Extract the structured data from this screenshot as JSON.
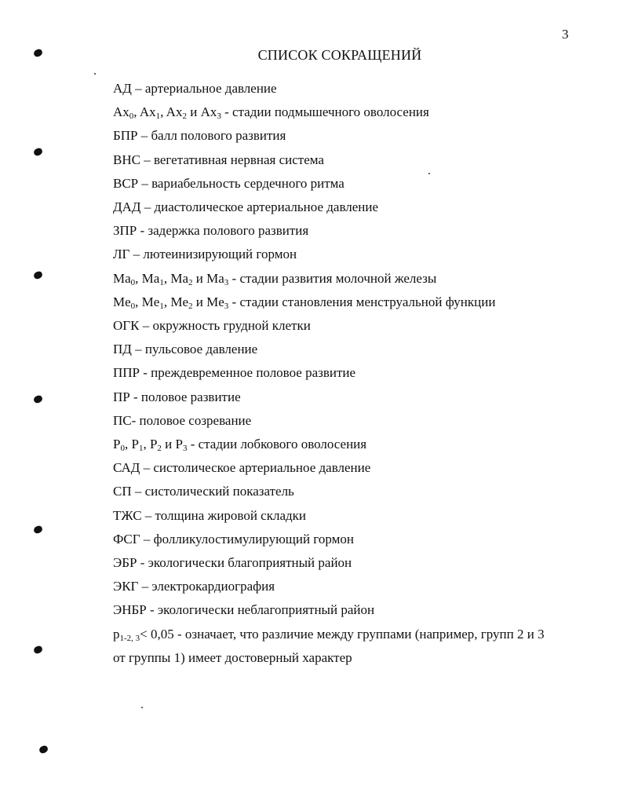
{
  "page_number": "3",
  "title": "СПИСОК СОКРАЩЕНИЙ",
  "lines": [
    [
      {
        "t": "АД – артериальное давление"
      }
    ],
    [
      {
        "t": "Ax"
      },
      {
        "t": "0",
        "sub": true
      },
      {
        "t": ", Ax"
      },
      {
        "t": "1",
        "sub": true
      },
      {
        "t": ", Ax"
      },
      {
        "t": "2",
        "sub": true
      },
      {
        "t": " и Ax"
      },
      {
        "t": "3",
        "sub": true
      },
      {
        "t": " - стадии подмышечного оволосения"
      }
    ],
    [
      {
        "t": "БПР – балл полового развития"
      }
    ],
    [
      {
        "t": "ВНС – вегетативная нервная система"
      }
    ],
    [
      {
        "t": "ВСР – вариабельность сердечного ритма"
      }
    ],
    [
      {
        "t": "ДАД – диастолическое артериальное давление"
      }
    ],
    [
      {
        "t": "ЗПР - задержка полового развития"
      }
    ],
    [
      {
        "t": "ЛГ – лютеинизирующий гормон"
      }
    ],
    [
      {
        "t": "Ma"
      },
      {
        "t": "0",
        "sub": true
      },
      {
        "t": ", Ma"
      },
      {
        "t": "1",
        "sub": true
      },
      {
        "t": ", Ma"
      },
      {
        "t": "2",
        "sub": true
      },
      {
        "t": " и Ma"
      },
      {
        "t": "3",
        "sub": true
      },
      {
        "t": " - стадии развития молочной железы"
      }
    ],
    [
      {
        "t": "Me"
      },
      {
        "t": "0",
        "sub": true
      },
      {
        "t": ", Me"
      },
      {
        "t": "1",
        "sub": true
      },
      {
        "t": ", Me"
      },
      {
        "t": "2",
        "sub": true
      },
      {
        "t": " и Me"
      },
      {
        "t": "3",
        "sub": true
      },
      {
        "t": " - стадии становления менструальной функции"
      }
    ],
    [
      {
        "t": "ОГК – окружность грудной клетки"
      }
    ],
    [
      {
        "t": "ПД – пульсовое давление"
      }
    ],
    [
      {
        "t": "ППР - преждевременное половое развитие"
      }
    ],
    [
      {
        "t": "ПР - половое развитие"
      }
    ],
    [
      {
        "t": "ПС- половое созревание"
      }
    ],
    [
      {
        "t": "P"
      },
      {
        "t": "0",
        "sub": true
      },
      {
        "t": ", P"
      },
      {
        "t": "1",
        "sub": true
      },
      {
        "t": ", P"
      },
      {
        "t": "2",
        "sub": true
      },
      {
        "t": " и P"
      },
      {
        "t": "3",
        "sub": true
      },
      {
        "t": " - стадии лобкового оволосения"
      }
    ],
    [
      {
        "t": "САД – систолическое артериальное давление"
      }
    ],
    [
      {
        "t": "СП – систолический показатель"
      }
    ],
    [
      {
        "t": "ТЖС – толщина жировой складки"
      }
    ],
    [
      {
        "t": "ФСГ – фолликулостимулирующий гормон"
      }
    ],
    [
      {
        "t": "ЭБР - экологически благоприятный район"
      }
    ],
    [
      {
        "t": "ЭКГ – электрокардиография"
      }
    ],
    [
      {
        "t": "ЭНБР - экологически неблагоприятный район"
      }
    ],
    [
      {
        "t": "p"
      },
      {
        "t": "1-2, 3",
        "sub": true
      },
      {
        "t": "< 0,05 - означает, что различие между группами (например, групп 2 и 3"
      }
    ],
    [
      {
        "t": "от группы 1) имеет достоверный характер"
      }
    ]
  ]
}
